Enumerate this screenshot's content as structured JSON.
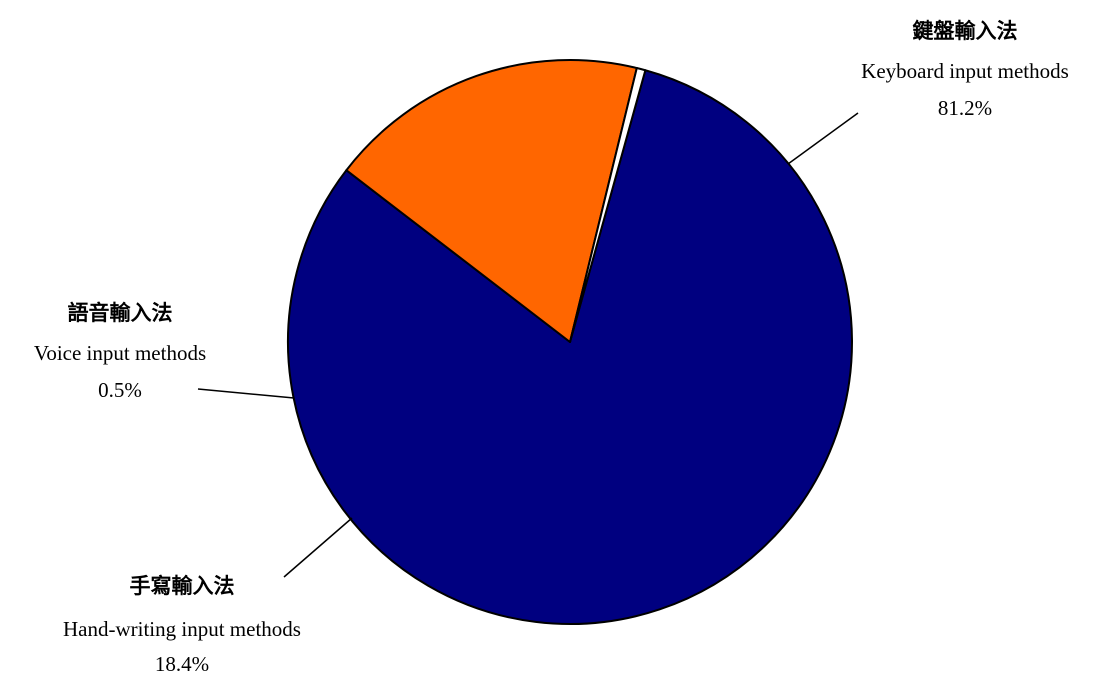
{
  "chart_data": {
    "type": "pie",
    "slices": [
      {
        "label_zh": "鍵盤輸入法",
        "label_en": "Keyboard input methods",
        "value": 81.2,
        "value_label": "81.2%",
        "color": "#000080"
      },
      {
        "label_zh": "手寫輸入法",
        "label_en": "Hand-writing input methods",
        "value": 18.4,
        "value_label": "18.4%",
        "color": "#FF6600"
      },
      {
        "label_zh": "語音輸入法",
        "label_en": "Voice input methods",
        "value": 0.5,
        "value_label": "0.5%",
        "color": "#FFFFFF"
      }
    ],
    "title": "",
    "legend": "none",
    "start_angle_deg": 15.5,
    "direction": "clockwise"
  }
}
